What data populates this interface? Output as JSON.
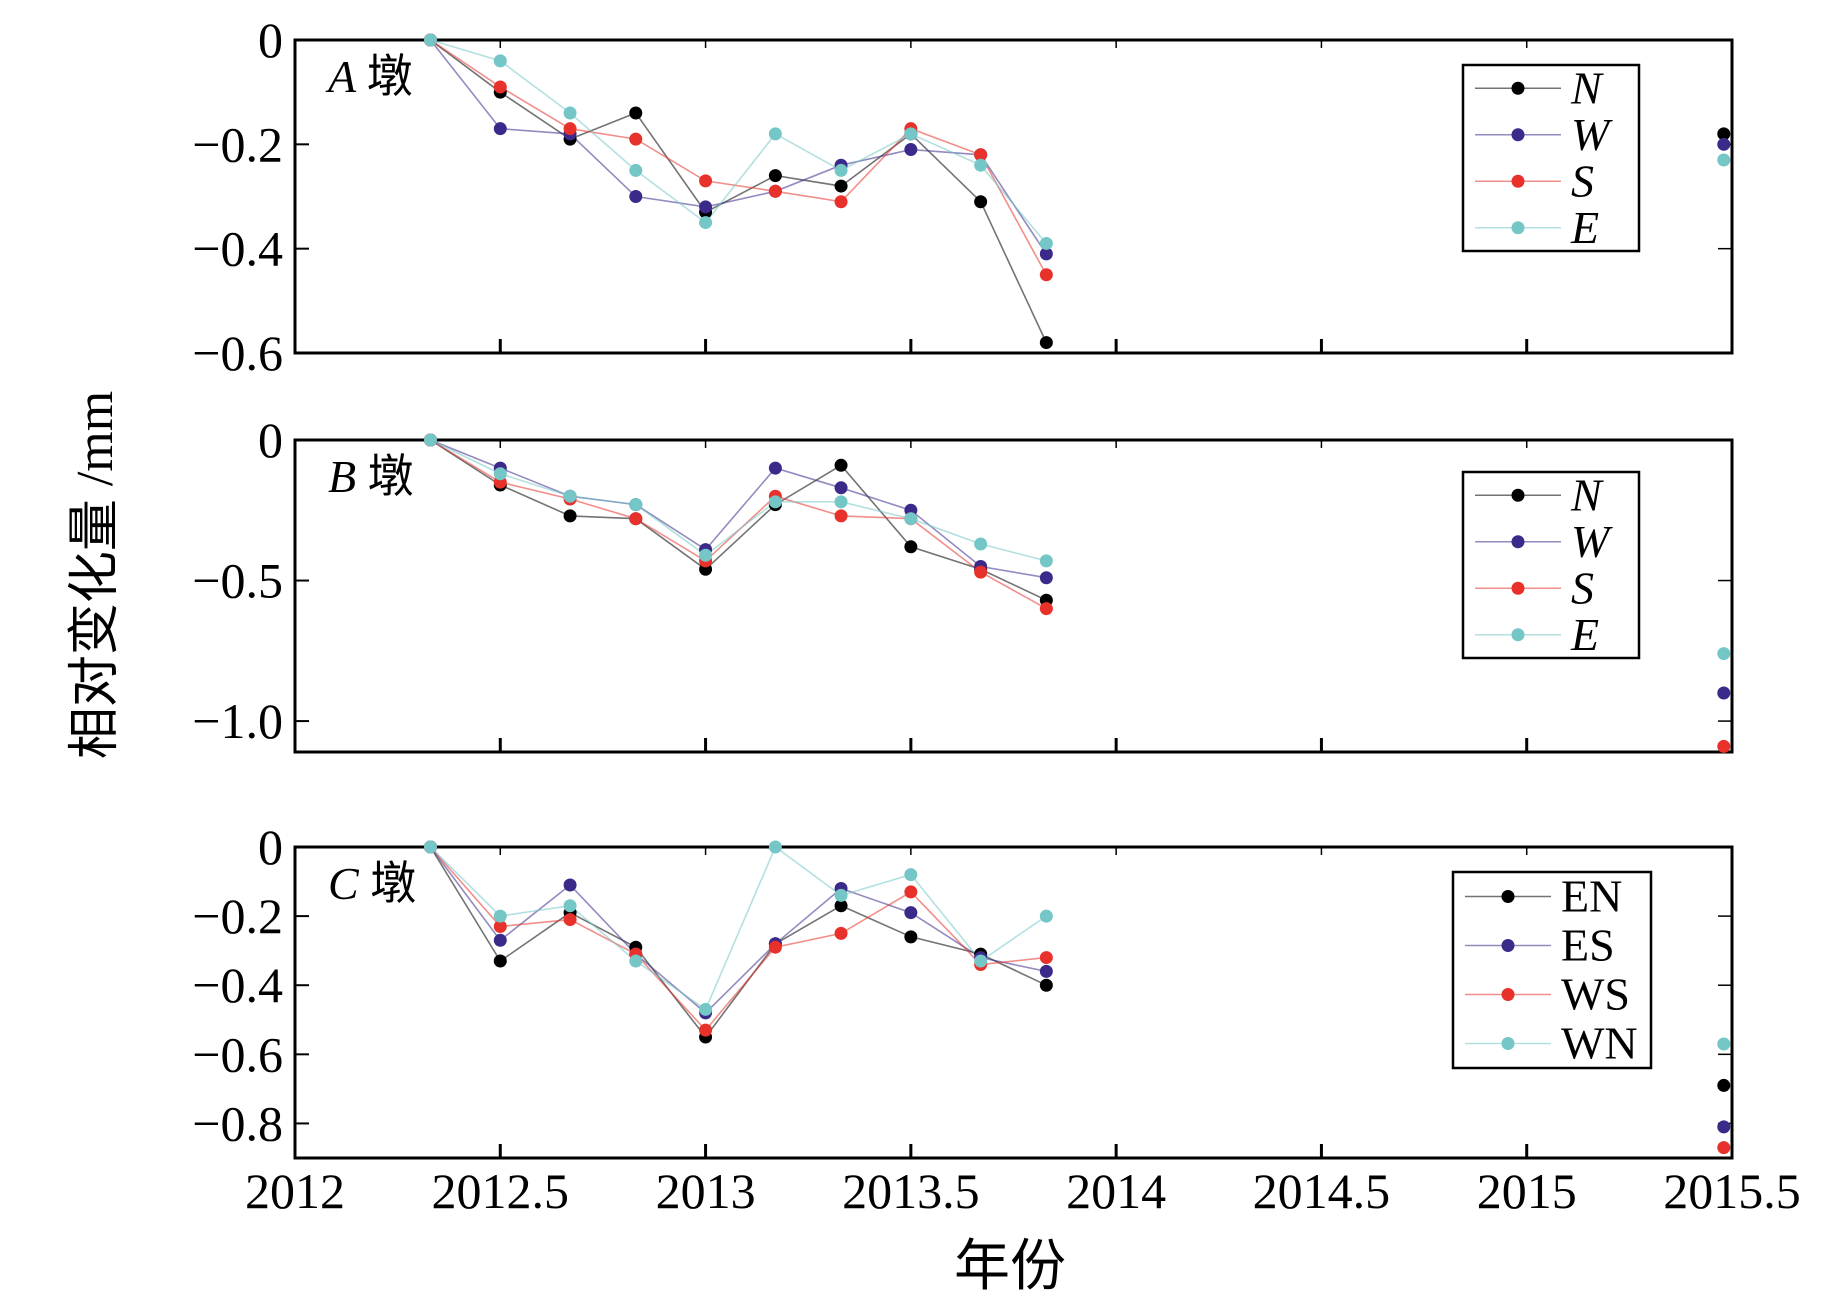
{
  "figure": {
    "ylabel": "相对变化量 /mm",
    "xlabel": "年份"
  },
  "chart_data": [
    {
      "type": "line",
      "panel_label": "A 墩",
      "panel_letter": "A",
      "panel_suffix": "墩",
      "xlim": [
        2012,
        2015.5
      ],
      "ylim": [
        -0.6,
        0
      ],
      "yticks": [
        0,
        -0.2,
        -0.4,
        -0.6
      ],
      "ytick_labels": [
        "0",
        "−0.2",
        "−0.4",
        "−0.6"
      ],
      "legend_italic": true,
      "legend_position": "top-right",
      "x": [
        2012.33,
        2012.5,
        2012.67,
        2012.83,
        2013.0,
        2013.17,
        2013.33,
        2013.5,
        2013.67,
        2013.83,
        2015.48
      ],
      "series": [
        {
          "name": "N",
          "color": "#000000",
          "values": [
            0,
            -0.1,
            -0.19,
            -0.14,
            -0.33,
            -0.26,
            -0.28,
            -0.18,
            -0.31,
            -0.58,
            -0.18
          ]
        },
        {
          "name": "W",
          "color": "#3b2a8a",
          "values": [
            0,
            -0.17,
            -0.18,
            -0.3,
            -0.32,
            -0.29,
            -0.24,
            -0.21,
            -0.22,
            -0.41,
            -0.2
          ]
        },
        {
          "name": "S",
          "color": "#e8312a",
          "values": [
            0,
            -0.09,
            -0.17,
            -0.19,
            -0.27,
            -0.29,
            -0.31,
            -0.17,
            -0.22,
            -0.45,
            null
          ]
        },
        {
          "name": "E",
          "color": "#74c6c7",
          "values": [
            0,
            -0.04,
            -0.14,
            -0.25,
            -0.35,
            -0.18,
            -0.25,
            -0.18,
            -0.24,
            -0.39,
            -0.23
          ]
        }
      ]
    },
    {
      "type": "line",
      "panel_label": "B 墩",
      "panel_letter": "B",
      "panel_suffix": "墩",
      "xlim": [
        2012,
        2015.5
      ],
      "ylim": [
        -1.11,
        0
      ],
      "yticks": [
        0,
        -0.5,
        -1.0
      ],
      "ytick_labels": [
        "0",
        "−0.5",
        "−1.0"
      ],
      "legend_italic": true,
      "legend_position": "top-right",
      "x": [
        2012.33,
        2012.5,
        2012.67,
        2012.83,
        2013.0,
        2013.17,
        2013.33,
        2013.5,
        2013.67,
        2013.83,
        2015.48
      ],
      "series": [
        {
          "name": "N",
          "color": "#000000",
          "values": [
            0,
            -0.16,
            -0.27,
            -0.28,
            -0.46,
            -0.23,
            -0.09,
            -0.38,
            -0.46,
            -0.57,
            null
          ]
        },
        {
          "name": "W",
          "color": "#3b2a8a",
          "values": [
            0,
            -0.1,
            -0.2,
            -0.23,
            -0.39,
            -0.1,
            -0.17,
            -0.25,
            -0.45,
            -0.49,
            -0.9
          ]
        },
        {
          "name": "S",
          "color": "#e8312a",
          "values": [
            0,
            -0.15,
            -0.21,
            -0.28,
            -0.43,
            -0.2,
            -0.27,
            -0.28,
            -0.47,
            -0.6,
            -1.09
          ]
        },
        {
          "name": "E",
          "color": "#74c6c7",
          "values": [
            0,
            -0.12,
            -0.2,
            -0.23,
            -0.41,
            -0.22,
            -0.22,
            -0.28,
            -0.37,
            -0.43,
            -0.76
          ]
        }
      ]
    },
    {
      "type": "line",
      "panel_label": "C 墩",
      "panel_letter": "C",
      "panel_suffix": "墩",
      "xlim": [
        2012,
        2015.5
      ],
      "ylim": [
        -0.9,
        0
      ],
      "yticks": [
        0,
        -0.2,
        -0.4,
        -0.6,
        -0.8
      ],
      "ytick_labels": [
        "0",
        "−0.2",
        "−0.4",
        "−0.6",
        "−0.8"
      ],
      "legend_italic": false,
      "legend_position": "right",
      "x": [
        2012.33,
        2012.5,
        2012.67,
        2012.83,
        2013.0,
        2013.17,
        2013.33,
        2013.5,
        2013.67,
        2013.83,
        2015.48
      ],
      "series": [
        {
          "name": "EN",
          "color": "#000000",
          "values": [
            0,
            -0.33,
            -0.19,
            -0.29,
            -0.55,
            -0.28,
            -0.17,
            -0.26,
            -0.31,
            -0.4,
            -0.69
          ]
        },
        {
          "name": "ES",
          "color": "#3b2a8a",
          "values": [
            0,
            -0.27,
            -0.11,
            -0.31,
            -0.48,
            -0.28,
            -0.12,
            -0.19,
            -0.32,
            -0.36,
            -0.81
          ]
        },
        {
          "name": "WS",
          "color": "#e8312a",
          "values": [
            0,
            -0.23,
            -0.21,
            -0.31,
            -0.53,
            -0.29,
            -0.25,
            -0.13,
            -0.34,
            -0.32,
            -0.87
          ]
        },
        {
          "name": "WN",
          "color": "#74c6c7",
          "values": [
            0,
            -0.2,
            -0.17,
            -0.33,
            -0.47,
            0,
            -0.14,
            -0.08,
            -0.33,
            -0.2,
            -0.57
          ]
        }
      ]
    }
  ],
  "x_axis": {
    "ticks": [
      2012,
      2012.5,
      2013,
      2013.5,
      2014,
      2014.5,
      2015,
      2015.5
    ],
    "tick_labels": [
      "2012",
      "2012.5",
      "2013",
      "2013.5",
      "2014",
      "2014.5",
      "2015",
      "2015.5"
    ]
  }
}
